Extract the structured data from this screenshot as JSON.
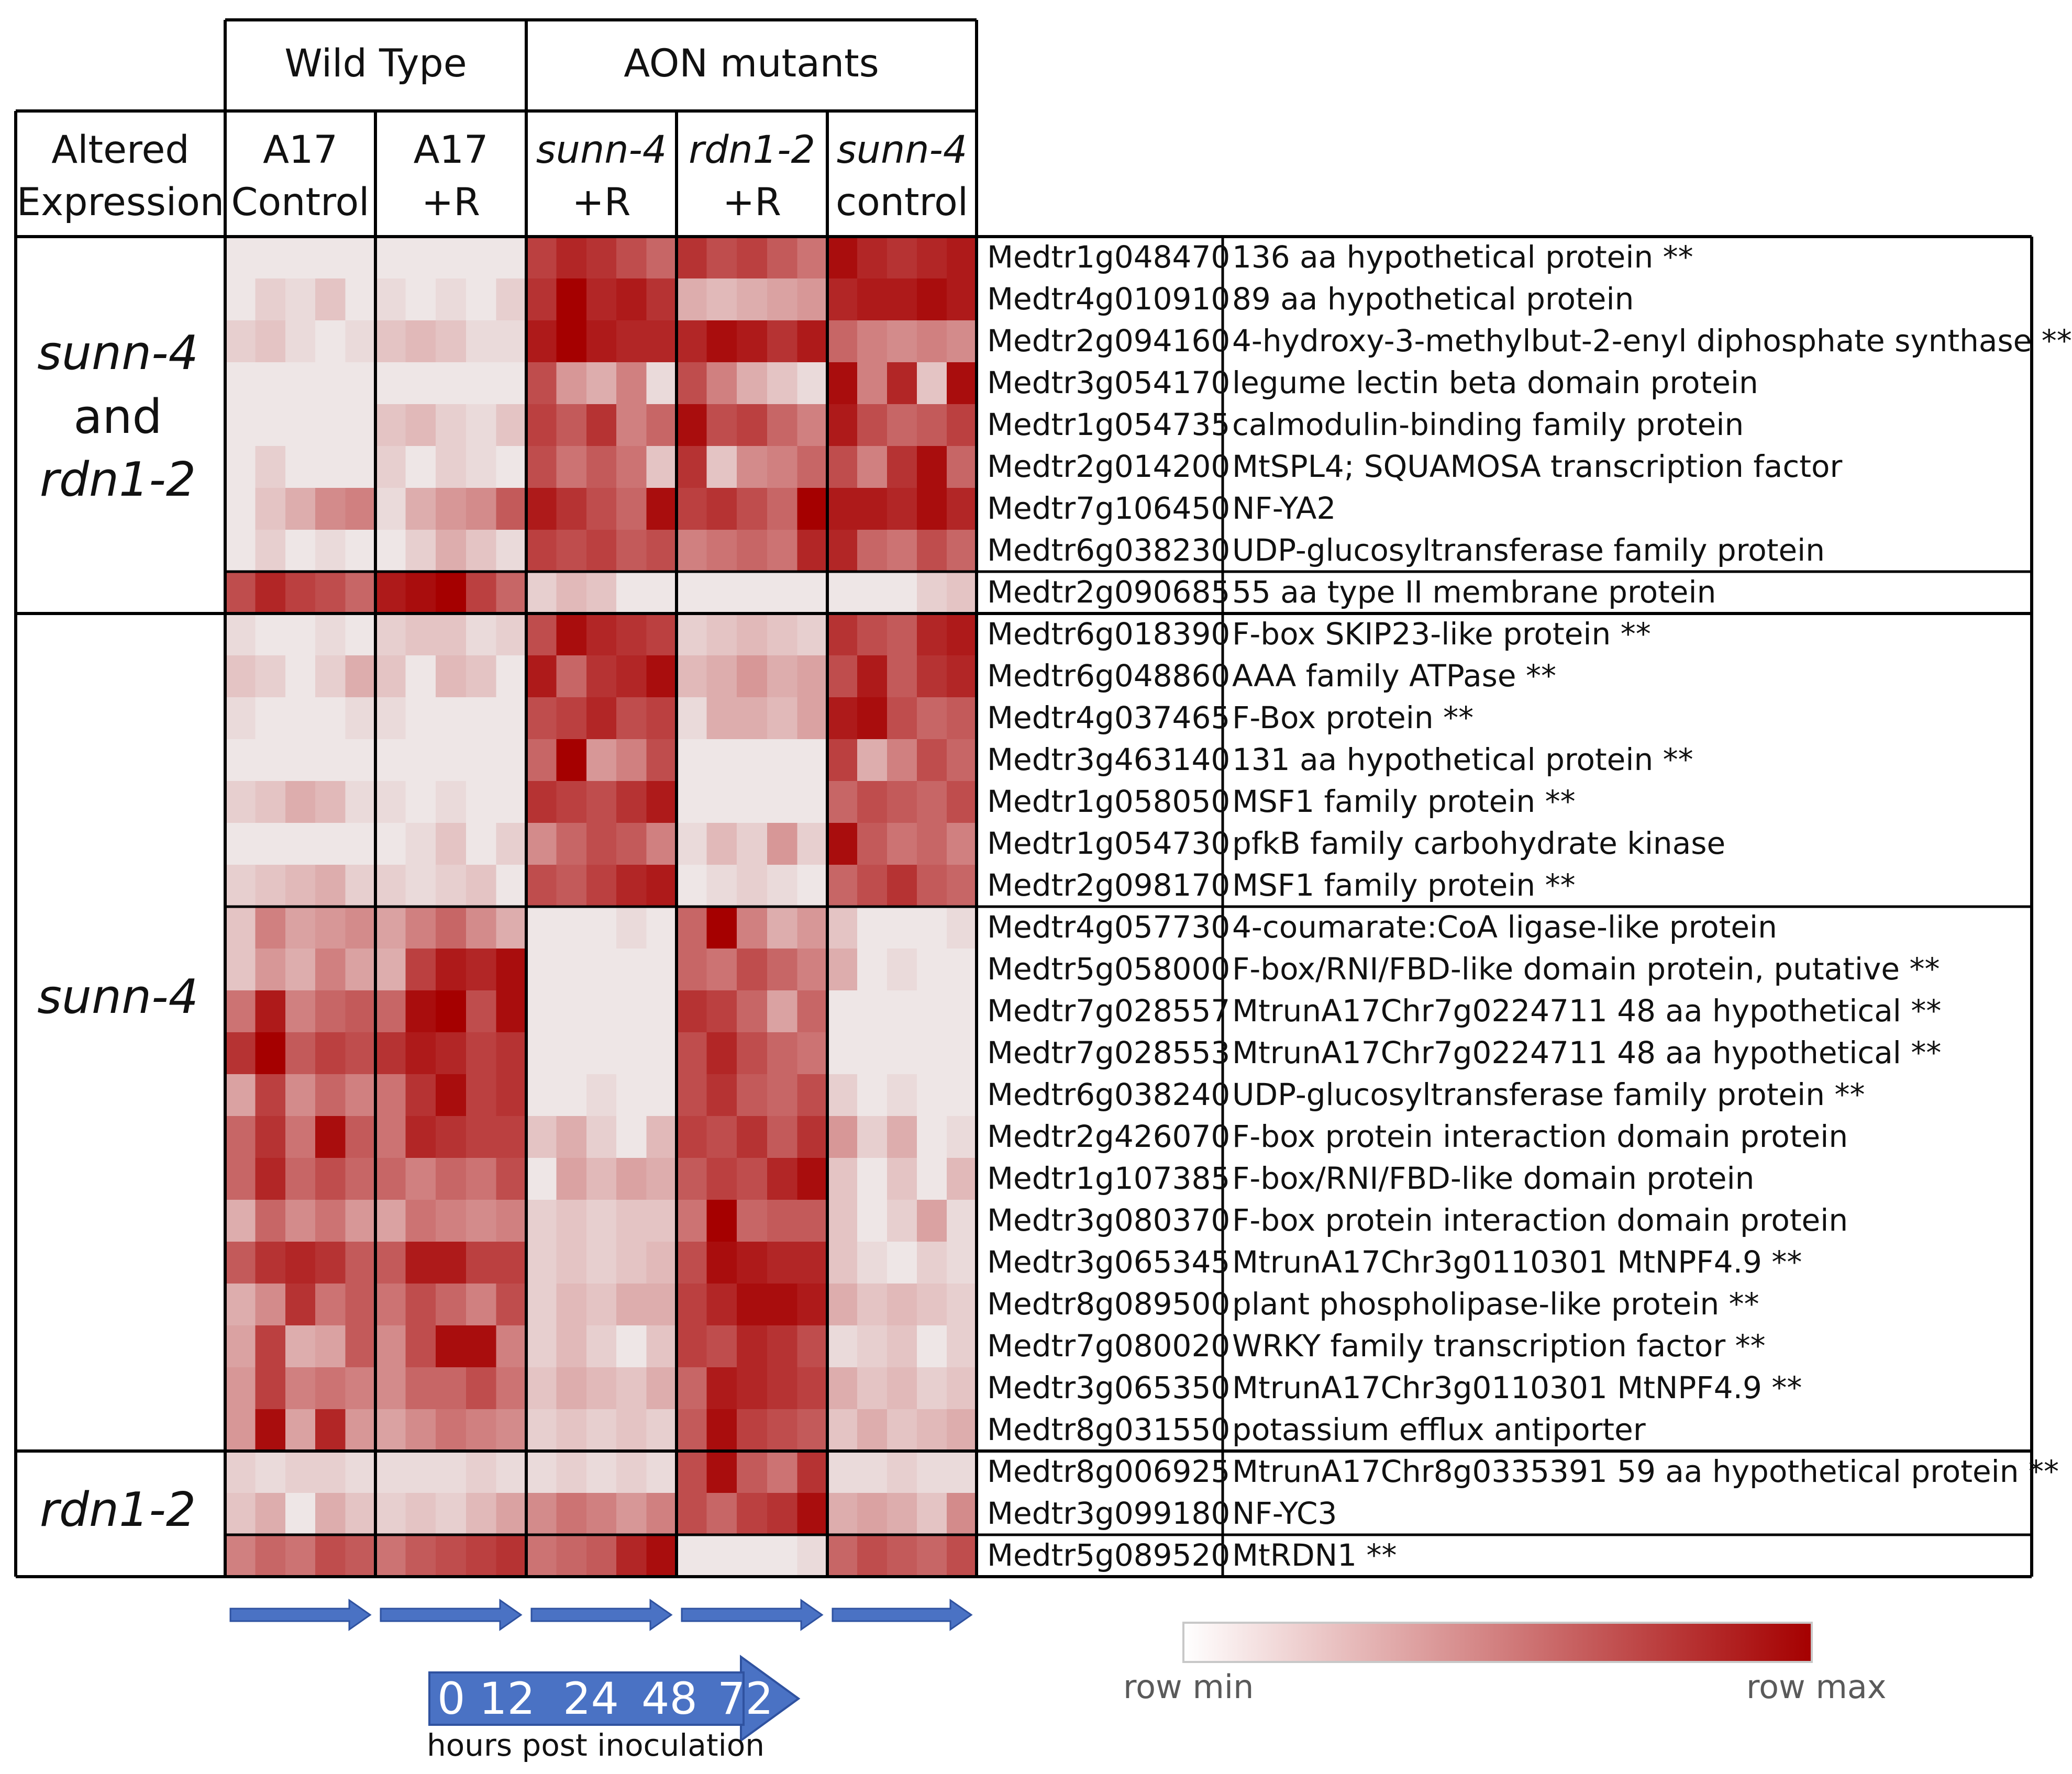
{
  "chart_data": {
    "type": "heatmap",
    "title": "",
    "header_groups": [
      {
        "label": "Wild Type"
      },
      {
        "label": "AON mutants"
      }
    ],
    "row_group_header": [
      "Altered",
      "Expression"
    ],
    "conditions": [
      {
        "line1": "A17",
        "line2": "Control",
        "italic": false
      },
      {
        "line1": "A17",
        "line2": "+R",
        "italic": false
      },
      {
        "line1": "sunn-4",
        "line2": "+R",
        "italic": true
      },
      {
        "line1": "rdn1-2",
        "line2": "+R",
        "italic": true
      },
      {
        "line1": "sunn-4",
        "line2": "control",
        "italic": true
      }
    ],
    "timepoints": [
      "0",
      "12",
      "24",
      "48",
      "72"
    ],
    "timepoint_caption": "hours post inoculation",
    "color_scale": {
      "min_label": "row min",
      "max_label": "row max",
      "min_color": "#f1f1f1",
      "max_color": "#a50000"
    },
    "row_groups": [
      {
        "label": [
          "sunn-4",
          "and",
          "rdn1-2"
        ]
      },
      {
        "label": [
          "sunn-4"
        ]
      },
      {
        "label": [
          "rdn1-2"
        ]
      }
    ],
    "rows": [
      {
        "id": "Medtr1g048470",
        "desc": "136 aa hypothetical protein **",
        "values": [
          0.05,
          0.05,
          0.05,
          0.05,
          0.05,
          0.05,
          0.05,
          0.05,
          0.05,
          0.05,
          0.75,
          0.85,
          0.8,
          0.7,
          0.6,
          0.8,
          0.7,
          0.75,
          0.65,
          0.55,
          0.95,
          0.85,
          0.8,
          0.85,
          0.9
        ]
      },
      {
        "id": "Medtr4g010910",
        "desc": "89 aa hypothetical protein",
        "values": [
          0.05,
          0.15,
          0.1,
          0.2,
          0.05,
          0.1,
          0.05,
          0.1,
          0.05,
          0.15,
          0.8,
          1.0,
          0.85,
          0.9,
          0.8,
          0.3,
          0.25,
          0.3,
          0.35,
          0.4,
          0.85,
          0.9,
          0.9,
          0.95,
          0.9
        ]
      },
      {
        "id": "Medtr2g094160",
        "desc": "4-hydroxy-3-methylbut-2-enyl diphosphate synthase **",
        "values": [
          0.15,
          0.2,
          0.1,
          0.05,
          0.1,
          0.2,
          0.25,
          0.2,
          0.1,
          0.1,
          0.9,
          1.0,
          0.9,
          0.85,
          0.85,
          0.85,
          0.95,
          0.9,
          0.8,
          0.9,
          0.6,
          0.5,
          0.45,
          0.5,
          0.45
        ]
      },
      {
        "id": "Medtr3g054170",
        "desc": "legume lectin beta domain protein",
        "values": [
          0.05,
          0.05,
          0.05,
          0.05,
          0.05,
          0.05,
          0.05,
          0.05,
          0.05,
          0.05,
          0.7,
          0.4,
          0.3,
          0.5,
          0.1,
          0.7,
          0.5,
          0.3,
          0.2,
          0.1,
          0.95,
          0.5,
          0.85,
          0.2,
          0.95
        ]
      },
      {
        "id": "Medtr1g054735",
        "desc": "calmodulin-binding family protein",
        "values": [
          0.05,
          0.05,
          0.05,
          0.05,
          0.05,
          0.2,
          0.25,
          0.15,
          0.1,
          0.2,
          0.75,
          0.65,
          0.8,
          0.5,
          0.6,
          0.95,
          0.7,
          0.75,
          0.6,
          0.5,
          0.9,
          0.7,
          0.6,
          0.65,
          0.75
        ]
      },
      {
        "id": "Medtr2g014200",
        "desc": "MtSPL4; SQUAMOSA transcription factor",
        "values": [
          0.05,
          0.15,
          0.05,
          0.05,
          0.05,
          0.15,
          0.05,
          0.15,
          0.1,
          0.05,
          0.7,
          0.55,
          0.65,
          0.55,
          0.2,
          0.8,
          0.2,
          0.45,
          0.5,
          0.6,
          0.7,
          0.5,
          0.8,
          0.95,
          0.6
        ]
      },
      {
        "id": "Medtr7g106450",
        "desc": "NF-YA2",
        "values": [
          0.05,
          0.2,
          0.3,
          0.45,
          0.5,
          0.1,
          0.3,
          0.4,
          0.45,
          0.65,
          0.9,
          0.8,
          0.7,
          0.6,
          0.95,
          0.75,
          0.8,
          0.7,
          0.6,
          1.0,
          0.9,
          0.9,
          0.85,
          0.95,
          0.85
        ]
      },
      {
        "id": "Medtr6g038230",
        "desc": "UDP-glucosyltransferase family protein",
        "values": [
          0.05,
          0.15,
          0.05,
          0.1,
          0.05,
          0.05,
          0.15,
          0.3,
          0.2,
          0.1,
          0.75,
          0.7,
          0.75,
          0.65,
          0.7,
          0.5,
          0.55,
          0.6,
          0.55,
          0.85,
          0.85,
          0.6,
          0.55,
          0.7,
          0.6
        ]
      },
      {
        "id": "Medtr2g090685",
        "desc": "55 aa type II membrane protein",
        "values": [
          0.7,
          0.85,
          0.75,
          0.7,
          0.6,
          0.9,
          0.95,
          1.0,
          0.75,
          0.6,
          0.15,
          0.25,
          0.2,
          0.05,
          0.05,
          0.05,
          0.05,
          0.05,
          0.05,
          0.05,
          0.05,
          0.05,
          0.05,
          0.15,
          0.2
        ]
      },
      {
        "id": "Medtr6g018390",
        "desc": "F-box SKIP23-like protein **",
        "values": [
          0.1,
          0.05,
          0.05,
          0.1,
          0.05,
          0.15,
          0.2,
          0.2,
          0.1,
          0.15,
          0.7,
          0.95,
          0.85,
          0.8,
          0.75,
          0.15,
          0.2,
          0.25,
          0.2,
          0.15,
          0.8,
          0.7,
          0.65,
          0.85,
          0.9
        ]
      },
      {
        "id": "Medtr6g048860",
        "desc": "AAA family ATPase **",
        "values": [
          0.2,
          0.15,
          0.05,
          0.15,
          0.3,
          0.2,
          0.05,
          0.25,
          0.2,
          0.05,
          0.9,
          0.6,
          0.8,
          0.85,
          0.95,
          0.25,
          0.3,
          0.4,
          0.3,
          0.35,
          0.7,
          0.9,
          0.65,
          0.8,
          0.85
        ]
      },
      {
        "id": "Medtr4g037465",
        "desc": "F-Box protein **",
        "values": [
          0.1,
          0.05,
          0.05,
          0.05,
          0.1,
          0.1,
          0.05,
          0.05,
          0.05,
          0.05,
          0.7,
          0.75,
          0.85,
          0.7,
          0.75,
          0.1,
          0.3,
          0.3,
          0.25,
          0.35,
          0.9,
          0.95,
          0.7,
          0.6,
          0.65
        ]
      },
      {
        "id": "Medtr3g463140",
        "desc": "131 aa hypothetical protein **",
        "values": [
          0.05,
          0.05,
          0.05,
          0.05,
          0.05,
          0.05,
          0.05,
          0.05,
          0.05,
          0.05,
          0.6,
          1.0,
          0.4,
          0.5,
          0.7,
          0.05,
          0.05,
          0.05,
          0.05,
          0.05,
          0.75,
          0.3,
          0.5,
          0.7,
          0.6
        ]
      },
      {
        "id": "Medtr1g058050",
        "desc": "MSF1 family protein **",
        "values": [
          0.15,
          0.2,
          0.3,
          0.25,
          0.1,
          0.1,
          0.05,
          0.1,
          0.05,
          0.05,
          0.8,
          0.75,
          0.7,
          0.8,
          0.9,
          0.05,
          0.05,
          0.05,
          0.05,
          0.05,
          0.6,
          0.7,
          0.65,
          0.6,
          0.7
        ]
      },
      {
        "id": "Medtr1g054730",
        "desc": "pfkB family carbohydrate kinase",
        "values": [
          0.05,
          0.05,
          0.05,
          0.05,
          0.05,
          0.05,
          0.1,
          0.2,
          0.05,
          0.15,
          0.45,
          0.6,
          0.7,
          0.65,
          0.5,
          0.1,
          0.25,
          0.15,
          0.4,
          0.15,
          0.95,
          0.65,
          0.55,
          0.6,
          0.5
        ]
      },
      {
        "id": "Medtr2g098170",
        "desc": "MSF1 family protein **",
        "values": [
          0.15,
          0.2,
          0.25,
          0.3,
          0.15,
          0.15,
          0.1,
          0.15,
          0.2,
          0.05,
          0.7,
          0.65,
          0.75,
          0.85,
          0.9,
          0.05,
          0.1,
          0.15,
          0.1,
          0.05,
          0.6,
          0.7,
          0.8,
          0.65,
          0.6
        ]
      },
      {
        "id": "Medtr4g057730",
        "desc": "4-coumarate:CoA ligase-like protein",
        "values": [
          0.2,
          0.5,
          0.35,
          0.4,
          0.45,
          0.35,
          0.5,
          0.6,
          0.45,
          0.3,
          0.05,
          0.05,
          0.05,
          0.1,
          0.05,
          0.6,
          1.0,
          0.5,
          0.3,
          0.4,
          0.2,
          0.05,
          0.05,
          0.05,
          0.1
        ]
      },
      {
        "id": "Medtr5g058000",
        "desc": "F-box/RNI/FBD-like domain protein, putative **",
        "values": [
          0.2,
          0.4,
          0.3,
          0.5,
          0.35,
          0.3,
          0.75,
          0.9,
          0.85,
          0.95,
          0.05,
          0.05,
          0.05,
          0.05,
          0.05,
          0.6,
          0.55,
          0.7,
          0.6,
          0.5,
          0.3,
          0.05,
          0.1,
          0.05,
          0.05
        ]
      },
      {
        "id": "Medtr7g028557",
        "desc": "MtrunA17Chr7g0224711 48 aa hypothetical **",
        "values": [
          0.55,
          0.9,
          0.5,
          0.6,
          0.65,
          0.6,
          0.95,
          1.0,
          0.7,
          0.95,
          0.05,
          0.05,
          0.05,
          0.05,
          0.05,
          0.8,
          0.75,
          0.6,
          0.35,
          0.6,
          0.05,
          0.05,
          0.05,
          0.05,
          0.05
        ]
      },
      {
        "id": "Medtr7g028553",
        "desc": "MtrunA17Chr7g0224711 48 aa hypothetical **",
        "values": [
          0.8,
          1.0,
          0.65,
          0.75,
          0.7,
          0.8,
          0.9,
          0.85,
          0.75,
          0.8,
          0.05,
          0.05,
          0.05,
          0.05,
          0.05,
          0.7,
          0.85,
          0.7,
          0.6,
          0.55,
          0.05,
          0.05,
          0.05,
          0.05,
          0.05
        ]
      },
      {
        "id": "Medtr6g038240",
        "desc": "UDP-glucosyltransferase family protein **",
        "values": [
          0.35,
          0.75,
          0.45,
          0.6,
          0.5,
          0.55,
          0.8,
          0.95,
          0.75,
          0.8,
          0.05,
          0.05,
          0.1,
          0.05,
          0.05,
          0.7,
          0.8,
          0.65,
          0.6,
          0.7,
          0.15,
          0.05,
          0.1,
          0.05,
          0.05
        ]
      },
      {
        "id": "Medtr2g426070",
        "desc": "F-box protein interaction domain protein",
        "values": [
          0.6,
          0.8,
          0.55,
          0.95,
          0.65,
          0.55,
          0.85,
          0.8,
          0.75,
          0.75,
          0.2,
          0.3,
          0.15,
          0.05,
          0.25,
          0.75,
          0.7,
          0.8,
          0.65,
          0.8,
          0.4,
          0.15,
          0.3,
          0.05,
          0.1
        ]
      },
      {
        "id": "Medtr1g107385",
        "desc": "F-box/RNI/FBD-like domain protein",
        "values": [
          0.6,
          0.85,
          0.6,
          0.7,
          0.6,
          0.6,
          0.5,
          0.6,
          0.55,
          0.7,
          0.05,
          0.35,
          0.25,
          0.35,
          0.3,
          0.65,
          0.75,
          0.7,
          0.85,
          0.95,
          0.2,
          0.05,
          0.2,
          0.05,
          0.25
        ]
      },
      {
        "id": "Medtr3g080370",
        "desc": "F-box protein interaction domain protein",
        "values": [
          0.3,
          0.6,
          0.45,
          0.55,
          0.4,
          0.35,
          0.55,
          0.5,
          0.45,
          0.5,
          0.15,
          0.2,
          0.15,
          0.2,
          0.2,
          0.55,
          1.0,
          0.6,
          0.65,
          0.65,
          0.2,
          0.05,
          0.15,
          0.35,
          0.1
        ]
      },
      {
        "id": "Medtr3g065345",
        "desc": "MtrunA17Chr3g0110301 MtNPF4.9 **",
        "values": [
          0.65,
          0.8,
          0.85,
          0.8,
          0.65,
          0.65,
          0.9,
          0.9,
          0.75,
          0.75,
          0.15,
          0.2,
          0.15,
          0.2,
          0.25,
          0.7,
          0.95,
          0.9,
          0.85,
          0.85,
          0.2,
          0.1,
          0.05,
          0.15,
          0.1
        ]
      },
      {
        "id": "Medtr8g089500",
        "desc": "plant phospholipase-like protein **",
        "values": [
          0.3,
          0.45,
          0.8,
          0.55,
          0.65,
          0.55,
          0.7,
          0.6,
          0.5,
          0.7,
          0.15,
          0.25,
          0.2,
          0.3,
          0.3,
          0.75,
          0.85,
          0.95,
          0.95,
          0.9,
          0.3,
          0.2,
          0.25,
          0.2,
          0.15
        ]
      },
      {
        "id": "Medtr7g080020",
        "desc": "WRKY family transcription factor **",
        "values": [
          0.35,
          0.75,
          0.3,
          0.35,
          0.65,
          0.45,
          0.7,
          0.95,
          0.95,
          0.5,
          0.15,
          0.25,
          0.15,
          0.05,
          0.2,
          0.75,
          0.7,
          0.85,
          0.8,
          0.7,
          0.1,
          0.15,
          0.2,
          0.05,
          0.15
        ]
      },
      {
        "id": "Medtr3g065350",
        "desc": "MtrunA17Chr3g0110301 MtNPF4.9 **",
        "values": [
          0.4,
          0.75,
          0.5,
          0.55,
          0.5,
          0.45,
          0.6,
          0.6,
          0.7,
          0.55,
          0.2,
          0.3,
          0.25,
          0.2,
          0.3,
          0.6,
          0.9,
          0.85,
          0.8,
          0.75,
          0.3,
          0.2,
          0.25,
          0.15,
          0.2
        ]
      },
      {
        "id": "Medtr8g031550",
        "desc": "potassium efflux antiporter",
        "values": [
          0.4,
          0.95,
          0.35,
          0.85,
          0.4,
          0.35,
          0.45,
          0.55,
          0.5,
          0.45,
          0.15,
          0.2,
          0.15,
          0.2,
          0.15,
          0.65,
          0.95,
          0.75,
          0.7,
          0.65,
          0.2,
          0.3,
          0.2,
          0.25,
          0.3
        ]
      },
      {
        "id": "Medtr8g006925",
        "desc": "MtrunA17Chr8g0335391 59 aa hypothetical protein **",
        "values": [
          0.15,
          0.1,
          0.15,
          0.15,
          0.1,
          0.1,
          0.1,
          0.1,
          0.15,
          0.1,
          0.1,
          0.15,
          0.1,
          0.15,
          0.1,
          0.7,
          0.95,
          0.65,
          0.55,
          0.8,
          0.1,
          0.1,
          0.15,
          0.1,
          0.1
        ]
      },
      {
        "id": "Medtr3g099180",
        "desc": "NF-YC3",
        "values": [
          0.2,
          0.3,
          0.05,
          0.3,
          0.2,
          0.15,
          0.2,
          0.15,
          0.25,
          0.35,
          0.45,
          0.55,
          0.5,
          0.4,
          0.5,
          0.7,
          0.6,
          0.75,
          0.8,
          0.95,
          0.3,
          0.35,
          0.3,
          0.2,
          0.45
        ]
      },
      {
        "id": "Medtr5g089520",
        "desc": "MtRDN1 **",
        "values": [
          0.5,
          0.6,
          0.55,
          0.7,
          0.65,
          0.55,
          0.65,
          0.7,
          0.75,
          0.8,
          0.55,
          0.6,
          0.65,
          0.85,
          0.95,
          0.05,
          0.05,
          0.05,
          0.05,
          0.1,
          0.6,
          0.7,
          0.65,
          0.6,
          0.7
        ]
      }
    ]
  }
}
